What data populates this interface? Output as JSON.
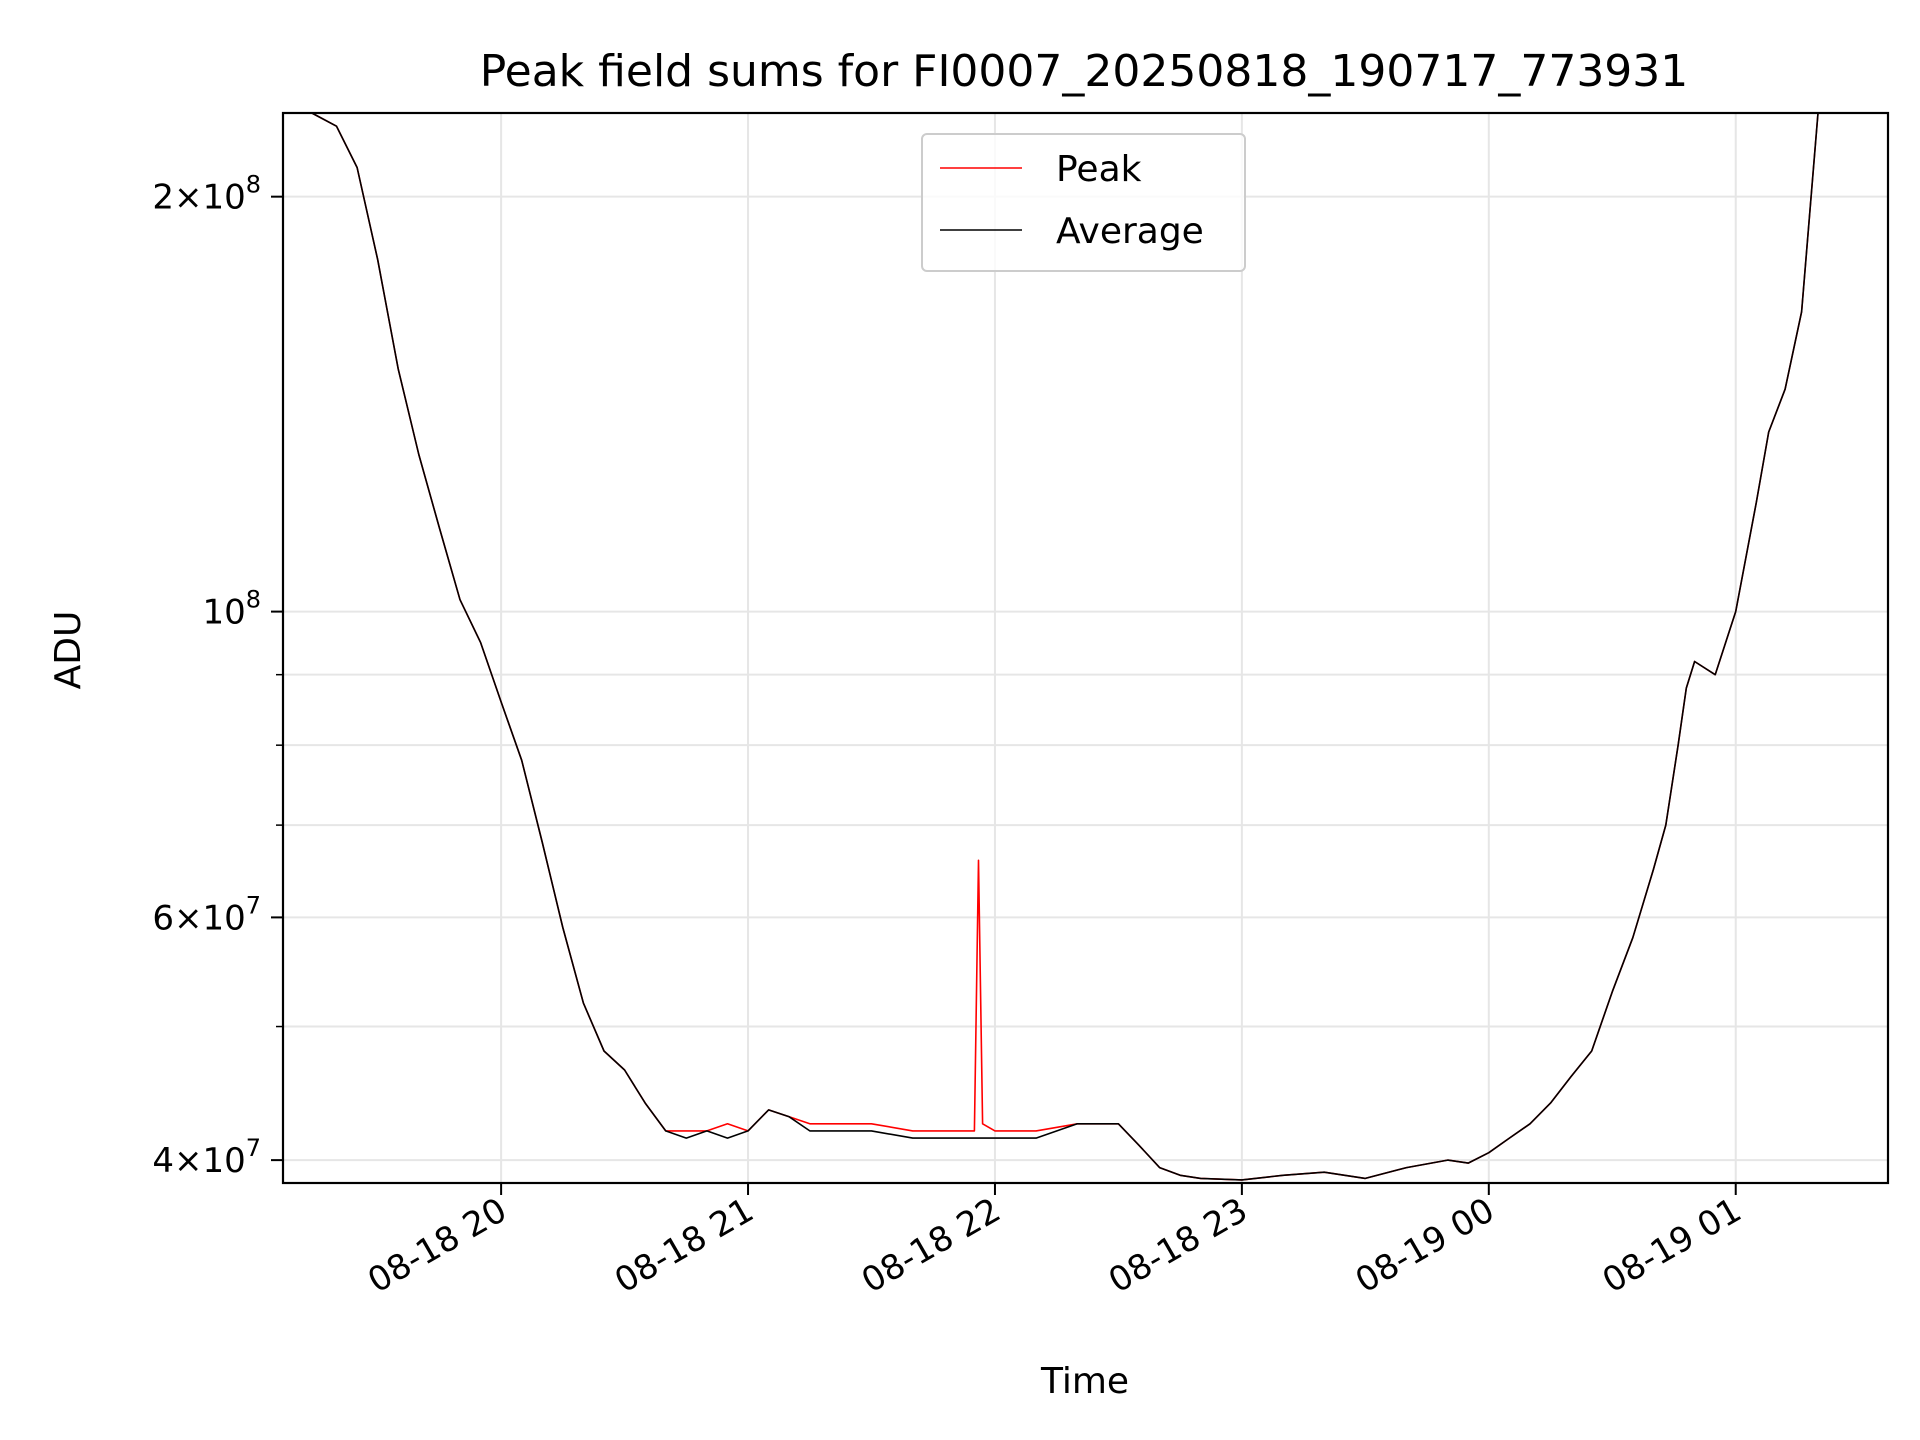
{
  "chart_data": {
    "type": "line",
    "title": "Peak field sums for FI0007_20250818_190717_773931",
    "xlabel": "Time",
    "ylabel": "ADU",
    "yscale": "log",
    "ylim": [
      38500000,
      230000000
    ],
    "xlim": [
      "2025-08-18 19:07",
      "2025-08-19 01:37"
    ],
    "grid": true,
    "legend": {
      "placement": "upper center"
    },
    "x_ticks": [
      {
        "value": "2025-08-18 20:00",
        "label": "08-18 20"
      },
      {
        "value": "2025-08-18 21:00",
        "label": "08-18 21"
      },
      {
        "value": "2025-08-18 22:00",
        "label": "08-18 22"
      },
      {
        "value": "2025-08-18 23:00",
        "label": "08-18 23"
      },
      {
        "value": "2025-08-19 00:00",
        "label": "08-19 00"
      },
      {
        "value": "2025-08-19 01:00",
        "label": "08-19 01"
      }
    ],
    "y_ticks": [
      {
        "value": 40000000,
        "mantissa": "4",
        "exponent": "7"
      },
      {
        "value": 60000000,
        "mantissa": "6",
        "exponent": "7"
      },
      {
        "value": 100000000,
        "mantissa": "",
        "exponent": "8"
      },
      {
        "value": 200000000,
        "mantissa": "2",
        "exponent": "8"
      }
    ],
    "y_minor_ticks": [
      50000000,
      70000000,
      80000000,
      90000000
    ],
    "series": [
      {
        "name": "Peak",
        "color": "#ff0000",
        "x": [
          "2025-08-18 19:14",
          "2025-08-18 19:20",
          "2025-08-18 19:25",
          "2025-08-18 19:30",
          "2025-08-18 19:35",
          "2025-08-18 19:40",
          "2025-08-18 19:45",
          "2025-08-18 19:50",
          "2025-08-18 19:55",
          "2025-08-18 20:00",
          "2025-08-18 20:05",
          "2025-08-18 20:10",
          "2025-08-18 20:15",
          "2025-08-18 20:20",
          "2025-08-18 20:25",
          "2025-08-18 20:30",
          "2025-08-18 20:35",
          "2025-08-18 20:40",
          "2025-08-18 20:45",
          "2025-08-18 20:50",
          "2025-08-18 20:55",
          "2025-08-18 21:00",
          "2025-08-18 21:05",
          "2025-08-18 21:10",
          "2025-08-18 21:15",
          "2025-08-18 21:20",
          "2025-08-18 21:30",
          "2025-08-18 21:40",
          "2025-08-18 21:50",
          "2025-08-18 21:55",
          "2025-08-18 21:56",
          "2025-08-18 21:57",
          "2025-08-18 22:00",
          "2025-08-18 22:10",
          "2025-08-18 22:20",
          "2025-08-18 22:30",
          "2025-08-18 22:35",
          "2025-08-18 22:40",
          "2025-08-18 22:45",
          "2025-08-18 22:50",
          "2025-08-18 23:00",
          "2025-08-18 23:10",
          "2025-08-18 23:20",
          "2025-08-18 23:30",
          "2025-08-18 23:40",
          "2025-08-18 23:50",
          "2025-08-18 23:55",
          "2025-08-19 00:00",
          "2025-08-19 00:05",
          "2025-08-19 00:10",
          "2025-08-19 00:15",
          "2025-08-19 00:20",
          "2025-08-19 00:25",
          "2025-08-19 00:30",
          "2025-08-19 00:35",
          "2025-08-19 00:40",
          "2025-08-19 00:43",
          "2025-08-19 00:46",
          "2025-08-19 00:48",
          "2025-08-19 00:50",
          "2025-08-19 00:55",
          "2025-08-19 01:00",
          "2025-08-19 01:05",
          "2025-08-19 01:08",
          "2025-08-19 01:12",
          "2025-08-19 01:16",
          "2025-08-19 01:20"
        ],
        "y": [
          230000000,
          225000000,
          210000000,
          180000000,
          150000000,
          130000000,
          115000000,
          102000000,
          95000000,
          86000000,
          78000000,
          68000000,
          59000000,
          52000000,
          48000000,
          46500000,
          44000000,
          42000000,
          42000000,
          42000000,
          42500000,
          42000000,
          43500000,
          43000000,
          42500000,
          42500000,
          42500000,
          42000000,
          42000000,
          42000000,
          66000000,
          42500000,
          42000000,
          42000000,
          42500000,
          42500000,
          41000000,
          39500000,
          39000000,
          38800000,
          38700000,
          39000000,
          39200000,
          38800000,
          39500000,
          40000000,
          39800000,
          40500000,
          41500000,
          42500000,
          44000000,
          46000000,
          48000000,
          53000000,
          58000000,
          65000000,
          70000000,
          80000000,
          88000000,
          92000000,
          90000000,
          100000000,
          120000000,
          135000000,
          145000000,
          165000000,
          230000000
        ]
      },
      {
        "name": "Average",
        "color": "#000000",
        "x": [
          "2025-08-18 19:14",
          "2025-08-18 19:20",
          "2025-08-18 19:25",
          "2025-08-18 19:30",
          "2025-08-18 19:35",
          "2025-08-18 19:40",
          "2025-08-18 19:45",
          "2025-08-18 19:50",
          "2025-08-18 19:55",
          "2025-08-18 20:00",
          "2025-08-18 20:05",
          "2025-08-18 20:10",
          "2025-08-18 20:15",
          "2025-08-18 20:20",
          "2025-08-18 20:25",
          "2025-08-18 20:30",
          "2025-08-18 20:35",
          "2025-08-18 20:40",
          "2025-08-18 20:45",
          "2025-08-18 20:50",
          "2025-08-18 20:55",
          "2025-08-18 21:00",
          "2025-08-18 21:05",
          "2025-08-18 21:10",
          "2025-08-18 21:15",
          "2025-08-18 21:20",
          "2025-08-18 21:30",
          "2025-08-18 21:40",
          "2025-08-18 21:50",
          "2025-08-18 21:55",
          "2025-08-18 21:56",
          "2025-08-18 21:57",
          "2025-08-18 22:00",
          "2025-08-18 22:10",
          "2025-08-18 22:20",
          "2025-08-18 22:30",
          "2025-08-18 22:35",
          "2025-08-18 22:40",
          "2025-08-18 22:45",
          "2025-08-18 22:50",
          "2025-08-18 23:00",
          "2025-08-18 23:10",
          "2025-08-18 23:20",
          "2025-08-18 23:30",
          "2025-08-18 23:40",
          "2025-08-18 23:50",
          "2025-08-18 23:55",
          "2025-08-19 00:00",
          "2025-08-19 00:05",
          "2025-08-19 00:10",
          "2025-08-19 00:15",
          "2025-08-19 00:20",
          "2025-08-19 00:25",
          "2025-08-19 00:30",
          "2025-08-19 00:35",
          "2025-08-19 00:40",
          "2025-08-19 00:43",
          "2025-08-19 00:46",
          "2025-08-19 00:48",
          "2025-08-19 00:50",
          "2025-08-19 00:55",
          "2025-08-19 01:00",
          "2025-08-19 01:05",
          "2025-08-19 01:08",
          "2025-08-19 01:12",
          "2025-08-19 01:16",
          "2025-08-19 01:20"
        ],
        "y": [
          230000000,
          225000000,
          210000000,
          180000000,
          150000000,
          130000000,
          115000000,
          102000000,
          95000000,
          86000000,
          78000000,
          68000000,
          59000000,
          52000000,
          48000000,
          46500000,
          44000000,
          42000000,
          41500000,
          42000000,
          41500000,
          42000000,
          43500000,
          43000000,
          42000000,
          42000000,
          42000000,
          41500000,
          41500000,
          41500000,
          41500000,
          41500000,
          41500000,
          41500000,
          42500000,
          42500000,
          41000000,
          39500000,
          39000000,
          38800000,
          38700000,
          39000000,
          39200000,
          38800000,
          39500000,
          40000000,
          39800000,
          40500000,
          41500000,
          42500000,
          44000000,
          46000000,
          48000000,
          53000000,
          58000000,
          65000000,
          70000000,
          80000000,
          88000000,
          92000000,
          90000000,
          100000000,
          120000000,
          135000000,
          145000000,
          165000000,
          230000000
        ]
      }
    ]
  }
}
